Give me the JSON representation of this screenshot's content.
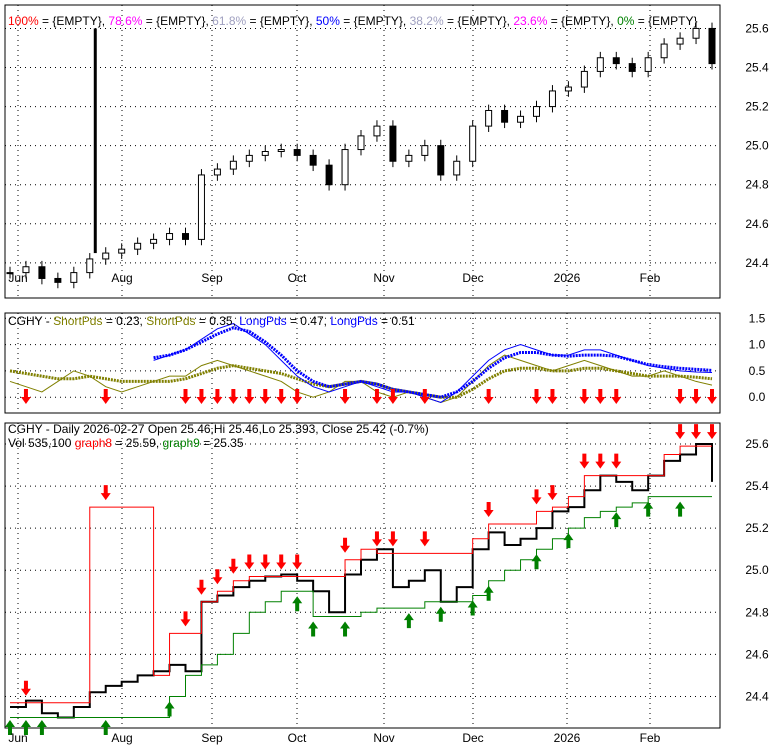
{
  "chart_data": [
    {
      "type": "candlestick",
      "panel": "price",
      "title_prefix": "CGHY - Daily 2026-02-27 Open 25.46, Hi 25.46, Lo 25.393, Close 25.42 (-0.7%)",
      "legend": [
        {
          "label": "100%",
          "color": "#ff0000"
        },
        {
          "label": "78.6%",
          "color": "#ff00ff"
        },
        {
          "label": "61.8%",
          "color": "#a0a0c0"
        },
        {
          "label": "50%",
          "color": "#0000ff"
        },
        {
          "label": "38.2%",
          "color": "#a0a0c0"
        },
        {
          "label": "23.6%",
          "color": "#ff00ff"
        },
        {
          "label": "0%",
          "color": "#008000"
        }
      ],
      "legend_value": "{EMPTY}",
      "yticks": [
        "24.4",
        "24.6",
        "24.8",
        "25.0",
        "25.2",
        "25.4",
        "25.6"
      ],
      "ylim": [
        24.22,
        25.72
      ]
    },
    {
      "type": "line",
      "panel": "indicator",
      "title": "CGHY -",
      "series_labels": [
        {
          "label": "ShortPds",
          "value": "0.23",
          "color": "#808000"
        },
        {
          "label": "ShortPds",
          "value": "0.35",
          "color": "#808000"
        },
        {
          "label": "LongPds",
          "value": "0.47",
          "color": "#0000ff"
        },
        {
          "label": "LongPds",
          "value": "0.51",
          "color": "#0000ff"
        }
      ],
      "yticks": [
        "0.0",
        "0.5",
        "1.0",
        "1.5"
      ],
      "ylim": [
        -0.3,
        1.6
      ]
    },
    {
      "type": "line",
      "panel": "signals",
      "title": "CGHY - Daily 2026-02-27 Open 25.46,Hi 25.46,Lo 25.393, Close 25.42 (-0.7%)",
      "vol": "Vol 535,100",
      "g8": {
        "label": "graph8",
        "value": "25.59",
        "color": "#ff0000"
      },
      "g9": {
        "label": "graph9",
        "value": "25.35",
        "color": "#008000"
      },
      "yticks": [
        "24.4",
        "24.6",
        "24.8",
        "25.0",
        "25.2",
        "25.4",
        "25.6"
      ],
      "ylim": [
        24.25,
        25.7
      ]
    }
  ],
  "xticks": [
    "Jun",
    "Aug",
    "Sep",
    "Oct",
    "Nov",
    "Dec",
    "2026",
    "Feb"
  ],
  "close": [
    24.35,
    24.38,
    24.32,
    24.3,
    24.35,
    24.42,
    24.45,
    24.47,
    24.5,
    24.52,
    24.55,
    24.52,
    24.85,
    24.88,
    24.92,
    24.95,
    24.97,
    24.98,
    24.95,
    24.9,
    24.8,
    24.98,
    25.05,
    25.1,
    24.92,
    24.95,
    25.0,
    24.85,
    24.92,
    25.1,
    25.18,
    25.12,
    25.15,
    25.2,
    25.28,
    25.3,
    25.38,
    25.45,
    25.42,
    25.38,
    25.45,
    25.52,
    25.55,
    25.6,
    25.42
  ],
  "short1": [
    0.3,
    0.2,
    0.1,
    0.3,
    0.5,
    0.4,
    0.2,
    0.1,
    0.2,
    0.3,
    0.4,
    0.4,
    0.6,
    0.7,
    0.6,
    0.5,
    0.4,
    0.3,
    0.1,
    0.0,
    0.1,
    0.3,
    0.3,
    0.1,
    0.0,
    0.1,
    0.0,
    -0.1,
    0.0,
    0.3,
    0.6,
    0.8,
    0.7,
    0.6,
    0.5,
    0.6,
    0.7,
    0.6,
    0.5,
    0.4,
    0.4,
    0.5,
    0.4,
    0.3,
    0.23
  ],
  "short2": [
    0.5,
    0.45,
    0.4,
    0.35,
    0.35,
    0.4,
    0.35,
    0.3,
    0.3,
    0.3,
    0.3,
    0.35,
    0.45,
    0.55,
    0.6,
    0.55,
    0.5,
    0.45,
    0.35,
    0.25,
    0.2,
    0.25,
    0.3,
    0.25,
    0.15,
    0.1,
    0.05,
    0.0,
    0.0,
    0.15,
    0.35,
    0.5,
    0.55,
    0.55,
    0.5,
    0.5,
    0.55,
    0.55,
    0.5,
    0.45,
    0.4,
    0.4,
    0.4,
    0.38,
    0.35
  ],
  "long1": [
    null,
    null,
    null,
    null,
    null,
    null,
    null,
    null,
    null,
    0.7,
    0.8,
    0.9,
    1.1,
    1.3,
    1.4,
    1.2,
    1.0,
    0.7,
    0.4,
    0.2,
    0.1,
    0.2,
    0.3,
    0.2,
    0.1,
    0.1,
    0.0,
    -0.1,
    0.1,
    0.4,
    0.7,
    0.9,
    1.0,
    0.9,
    0.8,
    0.8,
    0.9,
    0.9,
    0.8,
    0.7,
    0.6,
    0.55,
    0.5,
    0.48,
    0.47
  ],
  "long2": [
    null,
    null,
    null,
    null,
    null,
    null,
    null,
    null,
    null,
    0.75,
    0.8,
    0.9,
    1.05,
    1.2,
    1.32,
    1.25,
    1.05,
    0.8,
    0.5,
    0.3,
    0.2,
    0.25,
    0.3,
    0.25,
    0.15,
    0.1,
    0.05,
    0.0,
    0.1,
    0.3,
    0.55,
    0.75,
    0.85,
    0.85,
    0.8,
    0.78,
    0.8,
    0.8,
    0.78,
    0.7,
    0.62,
    0.58,
    0.55,
    0.53,
    0.51
  ],
  "graph8": [
    24.37,
    24.37,
    24.37,
    24.37,
    24.37,
    25.3,
    25.3,
    25.3,
    25.3,
    24.5,
    24.7,
    24.7,
    24.85,
    24.9,
    24.95,
    24.97,
    24.97,
    24.97,
    24.97,
    24.97,
    24.97,
    25.05,
    25.1,
    25.08,
    25.08,
    25.08,
    25.08,
    25.08,
    25.08,
    25.15,
    25.22,
    25.22,
    25.22,
    25.28,
    25.3,
    25.35,
    25.45,
    25.45,
    25.45,
    25.45,
    25.45,
    25.55,
    25.59,
    25.59,
    25.59
  ],
  "graph9": [
    24.3,
    24.3,
    24.3,
    24.3,
    24.3,
    24.3,
    24.3,
    24.3,
    24.3,
    24.3,
    24.4,
    24.5,
    24.55,
    24.6,
    24.7,
    24.8,
    24.85,
    24.9,
    24.9,
    24.78,
    24.78,
    24.78,
    24.8,
    24.82,
    24.82,
    24.82,
    24.85,
    24.85,
    24.85,
    24.88,
    24.95,
    25.0,
    25.05,
    25.1,
    25.15,
    25.2,
    25.25,
    25.28,
    25.3,
    25.32,
    25.35,
    25.35,
    25.35,
    25.35,
    25.35
  ],
  "sell_idx": [
    1,
    6,
    11,
    12,
    13,
    14,
    15,
    16,
    17,
    18,
    21,
    23,
    24,
    26,
    30,
    33,
    34,
    36,
    37,
    38,
    42,
    43,
    44
  ],
  "buy_idx": [
    0,
    1,
    2,
    6,
    10,
    18,
    19,
    21,
    25,
    27,
    29,
    30,
    33,
    35,
    38,
    40,
    42
  ]
}
